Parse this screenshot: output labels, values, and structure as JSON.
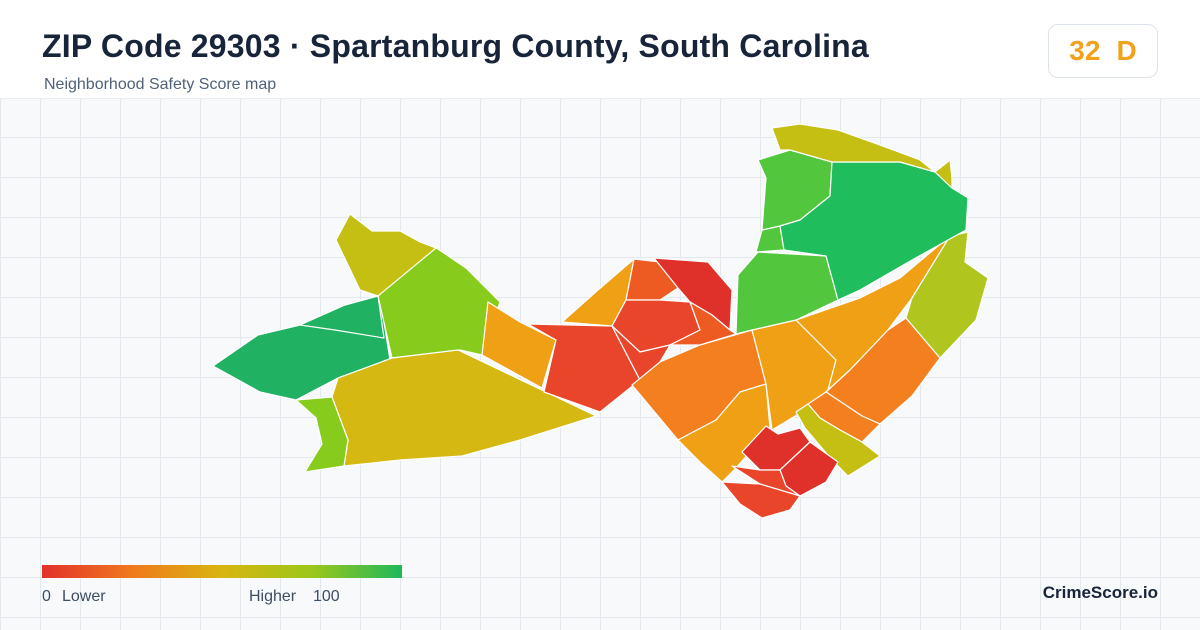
{
  "header": {
    "title": "ZIP Code 29303 · Spartanburg County, South Carolina",
    "subtitle": "Neighborhood Safety Score map"
  },
  "score": {
    "value": "32",
    "grade": "D",
    "color": "#f0a21b"
  },
  "legend": {
    "min_label": "0",
    "low_label": "Lower",
    "high_label": "Higher",
    "max_label": "100",
    "gradient": [
      "#e3312b",
      "#f0791e",
      "#d8b50f",
      "#9cc71a",
      "#1fb85b"
    ]
  },
  "brand": "CrimeScore.io",
  "palette": {
    "red": "#e0302a",
    "red_orange": "#e9452a",
    "orange_red": "#ee5b22",
    "orange": "#f47f1e",
    "amber": "#efa015",
    "gold": "#d5b812",
    "olive": "#c4bf12",
    "yellow_green": "#b0c51d",
    "lime": "#87cc1c",
    "green": "#52c63d",
    "emerald": "#1fbd5c",
    "teal_green": "#20b162"
  }
}
